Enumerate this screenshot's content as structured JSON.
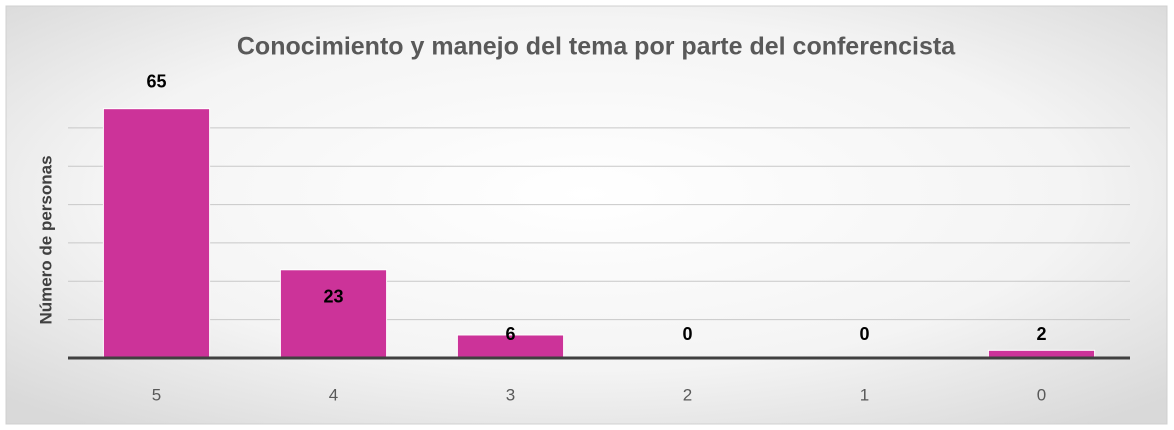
{
  "chart_data": {
    "type": "bar",
    "title": "Conocimiento y manejo del tema por parte del conferencista",
    "y_label": "Número de personas",
    "categories": [
      "5",
      "4",
      "3",
      "2",
      "1",
      "0"
    ],
    "values": [
      65,
      23,
      6,
      0,
      0,
      2
    ],
    "color": "#cc3399",
    "ylim": [
      0,
      70
    ],
    "yticks": [
      0,
      10,
      20,
      30,
      40,
      50,
      60
    ],
    "grid": true
  }
}
